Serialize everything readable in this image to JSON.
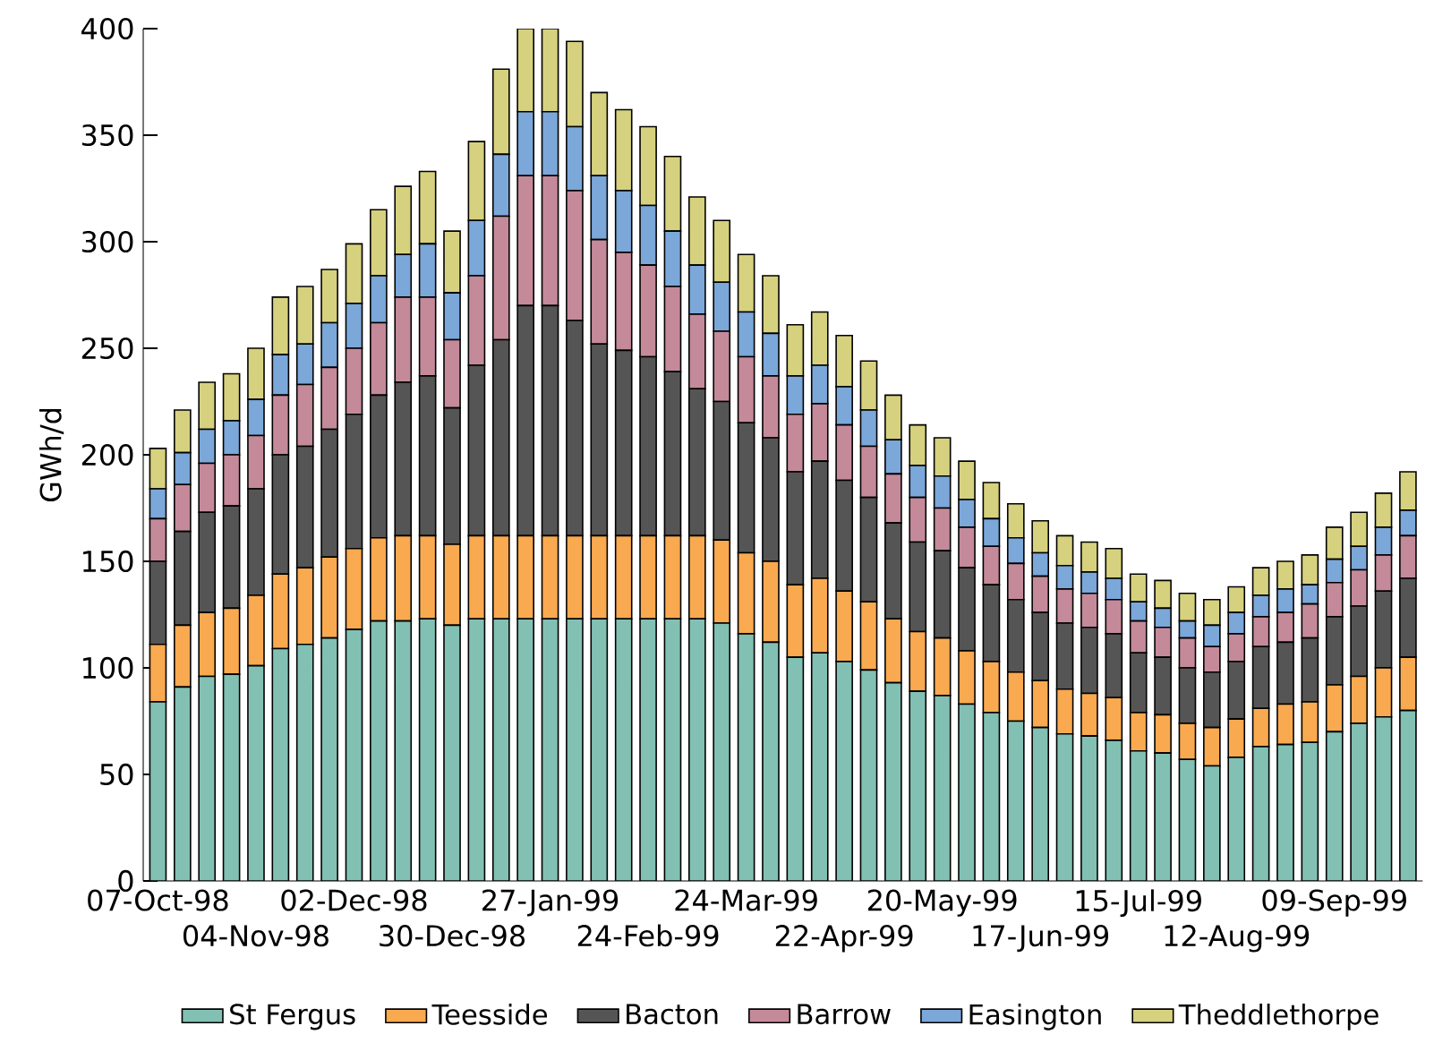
{
  "chart_data": {
    "type": "bar",
    "stacked": true,
    "ylabel": "GWh/d",
    "ylim": [
      0,
      400
    ],
    "yticks": [
      0,
      50,
      100,
      150,
      200,
      250,
      300,
      350,
      400
    ],
    "legend": "bottom",
    "categories": [
      "07-Oct-98",
      null,
      null,
      null,
      "04-Nov-98",
      null,
      null,
      null,
      "02-Dec-98",
      null,
      null,
      null,
      "30-Dec-98",
      null,
      null,
      null,
      "27-Jan-99",
      null,
      null,
      null,
      "24-Feb-99",
      null,
      null,
      null,
      "24-Mar-99",
      null,
      null,
      null,
      "22-Apr-99",
      null,
      null,
      null,
      "20-May-99",
      null,
      null,
      null,
      "17-Jun-99",
      null,
      null,
      null,
      "15-Jul-99",
      null,
      null,
      null,
      "12-Aug-99",
      null,
      null,
      null,
      "09-Sep-99",
      null,
      null,
      null
    ],
    "series": [
      {
        "name": "St Fergus",
        "color": "#82c0b4",
        "values": [
          84,
          91,
          96,
          97,
          101,
          109,
          111,
          114,
          118,
          122,
          122,
          123,
          120,
          123,
          123,
          123,
          123,
          123,
          123,
          123,
          123,
          123,
          123,
          121,
          116,
          112,
          105,
          107,
          103,
          99,
          93,
          89,
          87,
          83,
          79,
          75,
          72,
          69,
          68,
          66,
          61,
          60,
          57,
          54,
          58,
          63,
          64,
          65,
          70,
          74,
          77,
          80
        ]
      },
      {
        "name": "Teesside",
        "color": "#f9a94f",
        "values": [
          27,
          29,
          30,
          31,
          33,
          35,
          36,
          38,
          38,
          39,
          40,
          39,
          38,
          39,
          39,
          39,
          39,
          39,
          39,
          39,
          39,
          39,
          39,
          39,
          38,
          38,
          34,
          35,
          33,
          32,
          30,
          28,
          27,
          25,
          24,
          23,
          22,
          21,
          20,
          20,
          18,
          18,
          17,
          18,
          18,
          18,
          19,
          19,
          22,
          22,
          23,
          25
        ]
      },
      {
        "name": "Bacton",
        "color": "#555555",
        "values": [
          39,
          44,
          47,
          48,
          50,
          56,
          57,
          60,
          63,
          67,
          72,
          75,
          64,
          80,
          92,
          108,
          108,
          101,
          90,
          87,
          84,
          77,
          69,
          65,
          61,
          58,
          53,
          55,
          52,
          49,
          45,
          42,
          41,
          39,
          36,
          34,
          32,
          31,
          31,
          30,
          28,
          27,
          26,
          26,
          27,
          29,
          29,
          30,
          32,
          33,
          36,
          37
        ]
      },
      {
        "name": "Barrow",
        "color": "#c48a9a",
        "values": [
          20,
          22,
          23,
          24,
          25,
          28,
          29,
          29,
          31,
          34,
          40,
          37,
          32,
          42,
          58,
          61,
          61,
          61,
          49,
          46,
          43,
          40,
          35,
          33,
          31,
          29,
          27,
          27,
          26,
          24,
          23,
          21,
          20,
          19,
          18,
          17,
          17,
          16,
          16,
          16,
          15,
          14,
          14,
          12,
          13,
          14,
          14,
          16,
          16,
          17,
          17,
          20
        ]
      },
      {
        "name": "Easington",
        "color": "#7ba7d9",
        "values": [
          14,
          15,
          16,
          16,
          17,
          19,
          19,
          21,
          21,
          22,
          20,
          25,
          22,
          26,
          29,
          30,
          30,
          30,
          30,
          29,
          28,
          26,
          23,
          23,
          21,
          20,
          18,
          18,
          18,
          17,
          16,
          15,
          15,
          13,
          13,
          12,
          11,
          11,
          10,
          10,
          9,
          9,
          8,
          10,
          10,
          10,
          11,
          9,
          11,
          11,
          13,
          12
        ]
      },
      {
        "name": "Theddlethorpe",
        "color": "#d6d17e",
        "values": [
          19,
          20,
          22,
          22,
          24,
          27,
          27,
          25,
          28,
          31,
          32,
          34,
          29,
          37,
          40,
          39,
          39,
          40,
          39,
          38,
          37,
          35,
          32,
          29,
          27,
          27,
          24,
          25,
          24,
          23,
          21,
          19,
          18,
          18,
          17,
          16,
          15,
          14,
          14,
          14,
          13,
          13,
          13,
          12,
          12,
          13,
          13,
          14,
          15,
          16,
          16,
          18
        ]
      }
    ]
  }
}
